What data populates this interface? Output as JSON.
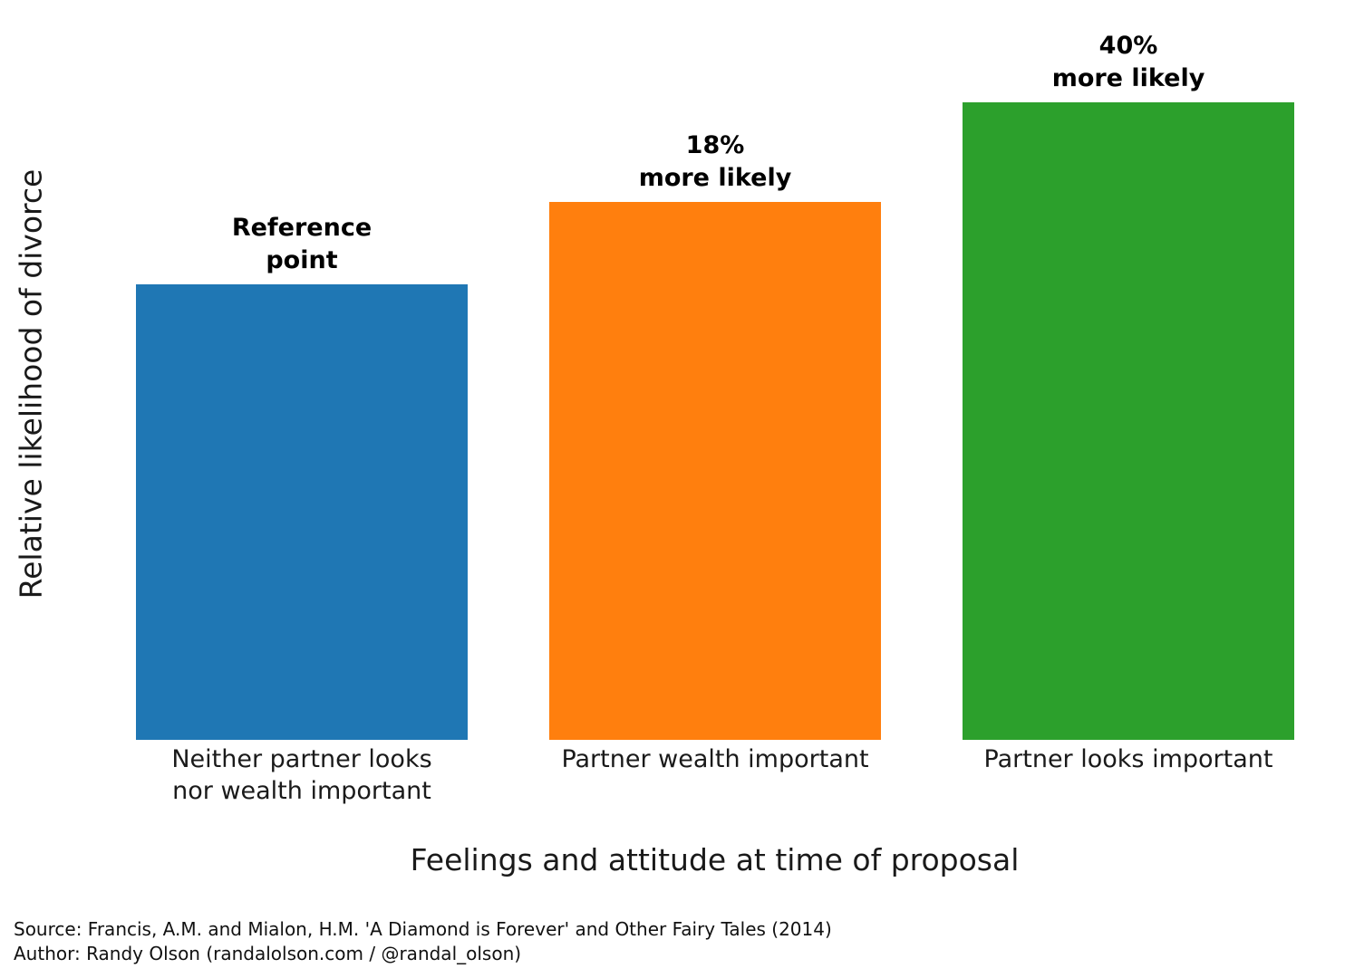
{
  "chart_data": {
    "type": "bar",
    "title": "",
    "xlabel": "Feelings and attitude at time of proposal",
    "ylabel": "Relative likelihood of divorce",
    "categories": [
      "Neither partner looks\nnor wealth important",
      "Partner wealth important",
      "Partner looks important"
    ],
    "values": [
      1.0,
      1.18,
      1.4
    ],
    "bar_annotations": [
      "Reference\npoint",
      "18%\nmore likely",
      "40%\nmore likely"
    ],
    "colors": [
      "#1f77b4",
      "#ff7f0e",
      "#2ca02c"
    ],
    "ylim": [
      0,
      1.62
    ],
    "grid": false,
    "legend": "none",
    "axis_lines": "none"
  },
  "footer": {
    "source_line": "Source: Francis, A.M. and Mialon, H.M. 'A Diamond is Forever' and Other Fairy Tales (2014)",
    "author_line": "Author: Randy Olson (randalolson.com / @randal_olson)"
  }
}
